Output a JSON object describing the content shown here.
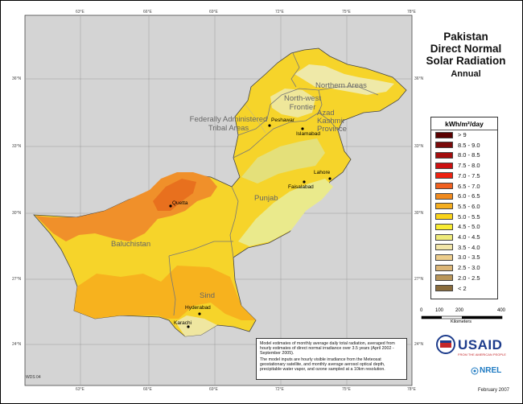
{
  "map": {
    "title_lines": [
      "Pakistan",
      "Direct Normal",
      "Solar Radiation"
    ],
    "subtitle": "Annual",
    "longitude_labels": [
      "63°E",
      "66°E",
      "69°E",
      "72°E",
      "75°E",
      "78°E"
    ],
    "latitude_labels": [
      "36°N",
      "33°N",
      "30°N",
      "27°N",
      "24°N"
    ],
    "regions": [
      "Northern Areas",
      "North-west Frontier",
      "Federally Administered Tribal Areas",
      "Azad Kashmir Province",
      "Punjab",
      "Baluchistan",
      "Sind"
    ],
    "cities": [
      "Peshawar",
      "Islamabad",
      "Lahore",
      "Faisalabad",
      "Quetta",
      "Hyderabad",
      "Karachi"
    ]
  },
  "legend": {
    "title": "kWh/m²/day",
    "classes": [
      {
        "label": "> 9",
        "color": "#5a0000"
      },
      {
        "label": "8.5 - 9.0",
        "color": "#7a0a0a"
      },
      {
        "label": "8.0 - 8.5",
        "color": "#a30d0d"
      },
      {
        "label": "7.5 - 8.0",
        "color": "#cc1010"
      },
      {
        "label": "7.0 - 7.5",
        "color": "#ee2211"
      },
      {
        "label": "6.5 - 7.0",
        "color": "#f06020"
      },
      {
        "label": "6.0 - 6.5",
        "color": "#f08a1e"
      },
      {
        "label": "5.5 - 6.0",
        "color": "#f4ad1e"
      },
      {
        "label": "5.0 - 5.5",
        "color": "#f9d31b"
      },
      {
        "label": "4.5 - 5.0",
        "color": "#f9ec33"
      },
      {
        "label": "4.0 - 4.5",
        "color": "#eeea7a"
      },
      {
        "label": "3.5 - 4.0",
        "color": "#f2e6a8"
      },
      {
        "label": "3.0 - 3.5",
        "color": "#eccd8c"
      },
      {
        "label": "2.5 - 3.0",
        "color": "#dcb677"
      },
      {
        "label": "2.0 - 2.5",
        "color": "#b9965a"
      },
      {
        "label": "< 2",
        "color": "#8a6c3c"
      }
    ]
  },
  "scale_bar": {
    "ticks": [
      "0",
      "100",
      "200",
      "400"
    ],
    "unit": "Kilometers"
  },
  "note": {
    "p1": "Model estimates of monthly average daily total radiation, averaged from hourly estimates of direct normal irradiance over 3.5 years (April 2002 - September 2005).",
    "p2": "The model inputs are hourly visible irradiance from the Meteosat geostationary satellite, and monthly average aerosol optical depth, precipitable water vapor, and ozone sampled at a 10km resolution."
  },
  "logos": {
    "usaid": "USAID",
    "usaid_tagline": "FROM THE AMERICAN PEOPLE",
    "nrel": "NREL"
  },
  "date": "February 2007",
  "map_code": "WDS 04"
}
